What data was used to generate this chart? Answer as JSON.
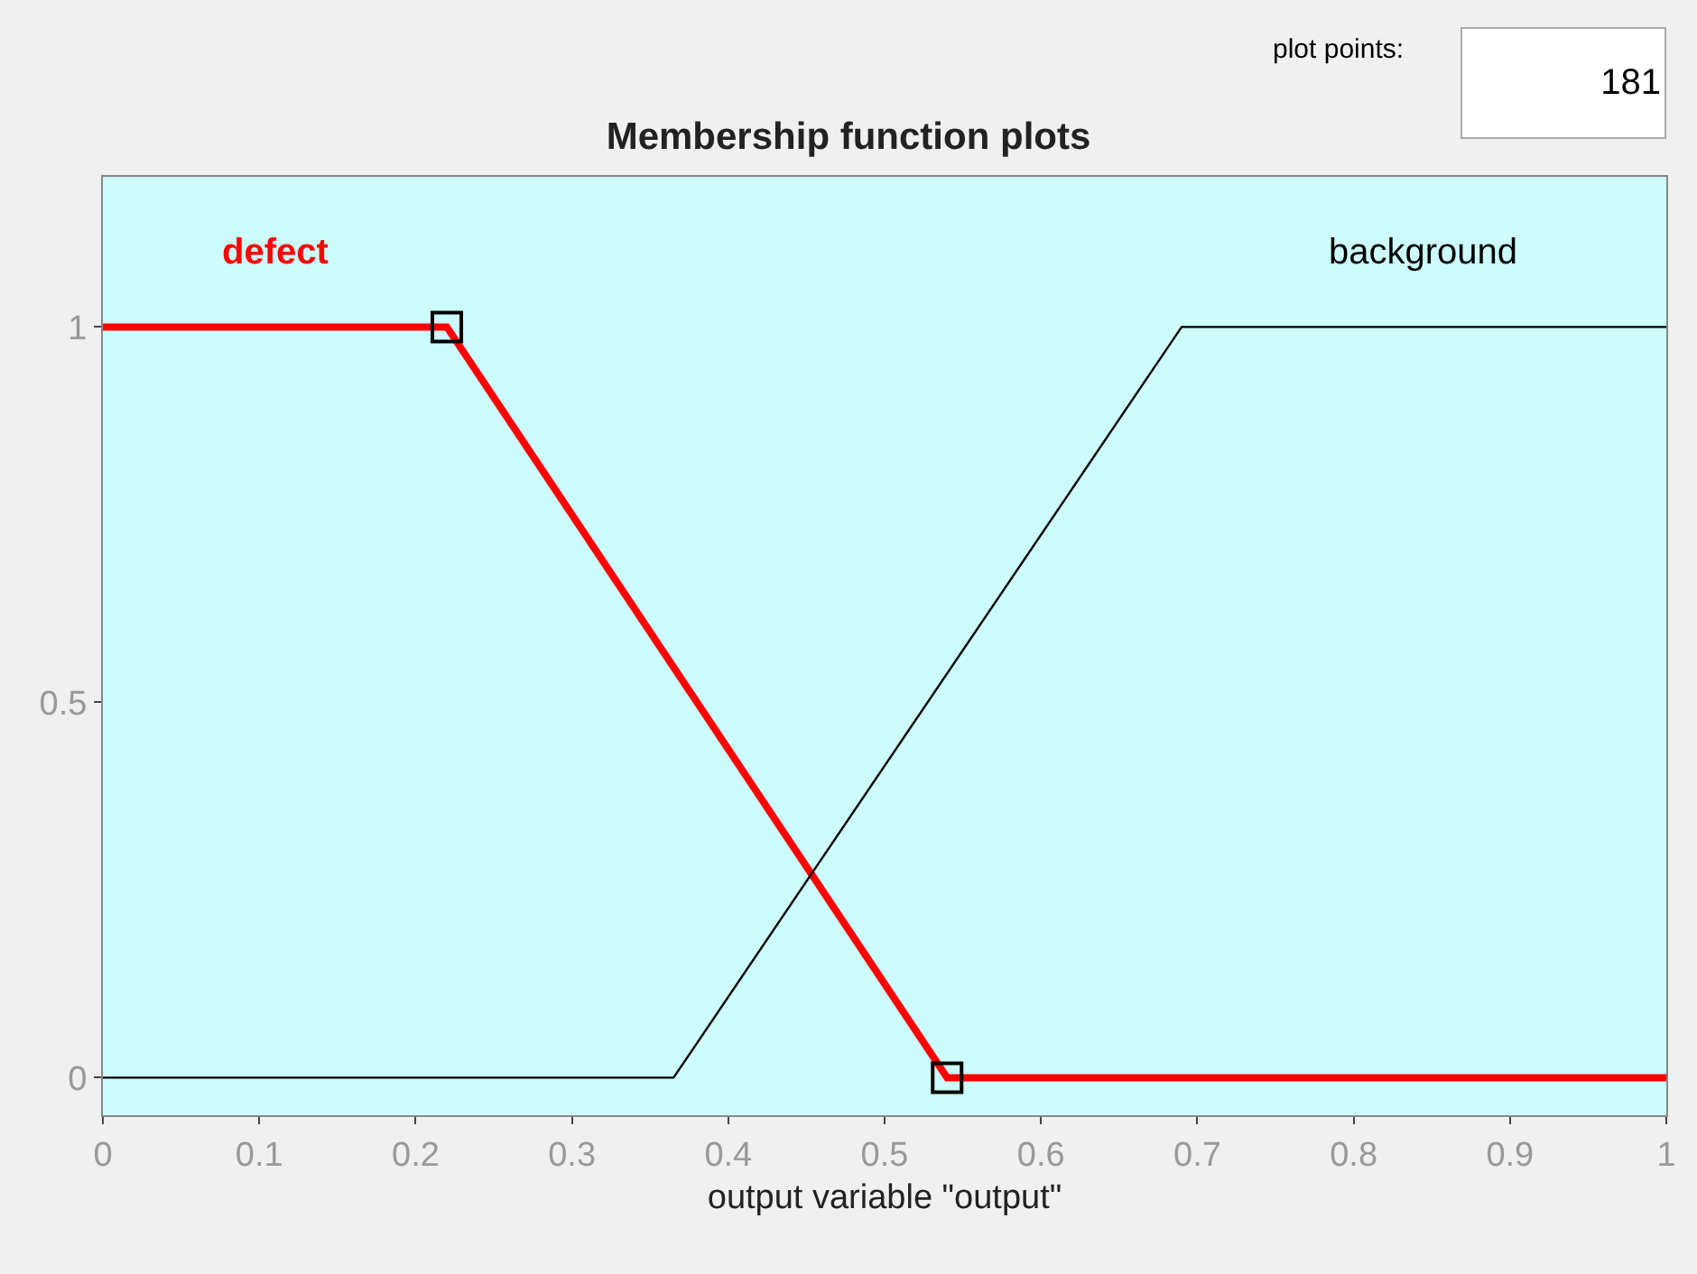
{
  "chart_data": {
    "type": "line",
    "title": "Membership function plots",
    "xlabel": "output variable \"output\"",
    "xlim": [
      0,
      1
    ],
    "ylim": [
      -0.05,
      1.2
    ],
    "xticks": [
      0,
      0.1,
      0.2,
      0.3,
      0.4,
      0.5,
      0.6,
      0.7,
      0.8,
      0.9,
      1
    ],
    "yticks": [
      0,
      0.5,
      1
    ],
    "grid": false,
    "legend": false,
    "annotations": [
      "plot points:",
      "181"
    ],
    "series": [
      {
        "name": "defect",
        "color": "#ff0000",
        "x": [
          0,
          0.22,
          0.54,
          1
        ],
        "values": [
          1,
          1,
          0,
          0
        ],
        "line_style": "solid",
        "marker": "none"
      },
      {
        "name": "background",
        "color": "#000000",
        "x": [
          0,
          0.365,
          0.69,
          1
        ],
        "values": [
          0,
          0,
          1,
          1
        ],
        "line_style": "solid",
        "marker": "none"
      },
      {
        "type": "scatter",
        "color": "#000000",
        "x": [
          0.22,
          0.54
        ],
        "values": [
          1,
          0
        ],
        "marker": "square"
      }
    ]
  }
}
